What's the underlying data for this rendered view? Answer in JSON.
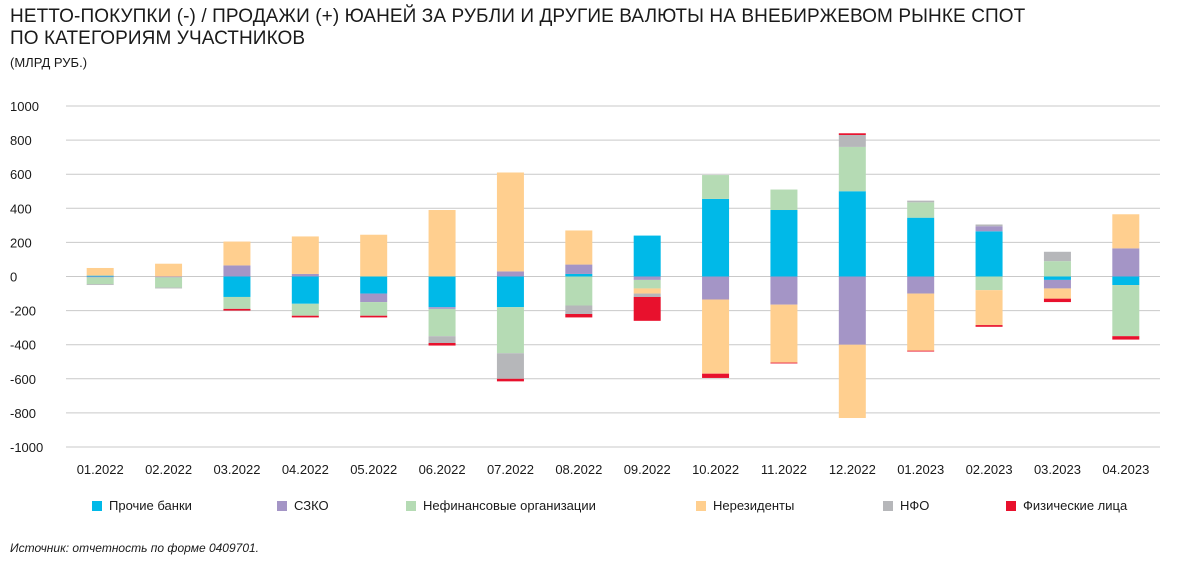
{
  "title_line1": "НЕТТО-ПОКУПКИ (-) / ПРОДАЖИ (+) ЮАНЕЙ ЗА РУБЛИ И ДРУГИЕ ВАЛЮТЫ НА ВНЕБИРЖЕВОМ РЫНКЕ СПОТ",
  "title_line2": "ПО КАТЕГОРИЯМ УЧАСТНИКОВ",
  "subtitle": "(МЛРД РУБ.)",
  "source": "Источник: отчетность по форме 0409701.",
  "chart_data": {
    "type": "bar",
    "stacked": true,
    "title": "НЕТТО-ПОКУПКИ (-) / ПРОДАЖИ (+) ЮАНЕЙ ЗА РУБЛИ И ДРУГИЕ ВАЛЮТЫ НА ВНЕБИРЖЕВОМ РЫНКЕ СПОТ ПО КАТЕГОРИЯМ УЧАСТНИКОВ",
    "ylabel": "(МЛРД РУБ.)",
    "ylim": [
      -1000,
      1000
    ],
    "yticks": [
      1000,
      800,
      600,
      400,
      200,
      0,
      -200,
      -400,
      -600,
      -800,
      -1000
    ],
    "grid": true,
    "legend_position": "bottom",
    "categories": [
      "01.2022",
      "02.2022",
      "03.2022",
      "04.2022",
      "05.2022",
      "06.2022",
      "07.2022",
      "08.2022",
      "09.2022",
      "10.2022",
      "11.2022",
      "12.2022",
      "01.2023",
      "02.2023",
      "03.2023",
      "04.2023"
    ],
    "series": [
      {
        "name": "Прочие банки",
        "color": "#00b9e8",
        "values": [
          5,
          0,
          -120,
          -160,
          -100,
          -180,
          -180,
          15,
          240,
          455,
          390,
          500,
          345,
          265,
          -20,
          -50
        ]
      },
      {
        "name": "СЗКО",
        "color": "#a495c6",
        "values": [
          -5,
          -5,
          65,
          15,
          -50,
          -10,
          30,
          55,
          -20,
          -135,
          -165,
          -400,
          -100,
          30,
          -50,
          165
        ]
      },
      {
        "name": "Нефинансовые организации",
        "color": "#b5dbb4",
        "values": [
          -40,
          -60,
          -70,
          -70,
          -80,
          -160,
          -270,
          -170,
          -50,
          140,
          120,
          260,
          90,
          -80,
          90,
          -300
        ]
      },
      {
        "name": "Нерезиденты",
        "color": "#ffcf8f",
        "values": [
          45,
          75,
          140,
          220,
          245,
          390,
          580,
          200,
          -30,
          -435,
          -340,
          -430,
          -335,
          -205,
          -60,
          200
        ]
      },
      {
        "name": "НФО",
        "color": "#b6b7ba",
        "values": [
          -5,
          -5,
          0,
          0,
          0,
          -40,
          -150,
          -50,
          -20,
          0,
          0,
          70,
          10,
          10,
          55,
          0
        ]
      },
      {
        "name": "Физические лица",
        "color": "#e8112d",
        "values": [
          0,
          0,
          -10,
          -10,
          -10,
          -15,
          -15,
          -20,
          -140,
          -25,
          -5,
          10,
          -5,
          -10,
          -20,
          -20
        ]
      }
    ]
  }
}
